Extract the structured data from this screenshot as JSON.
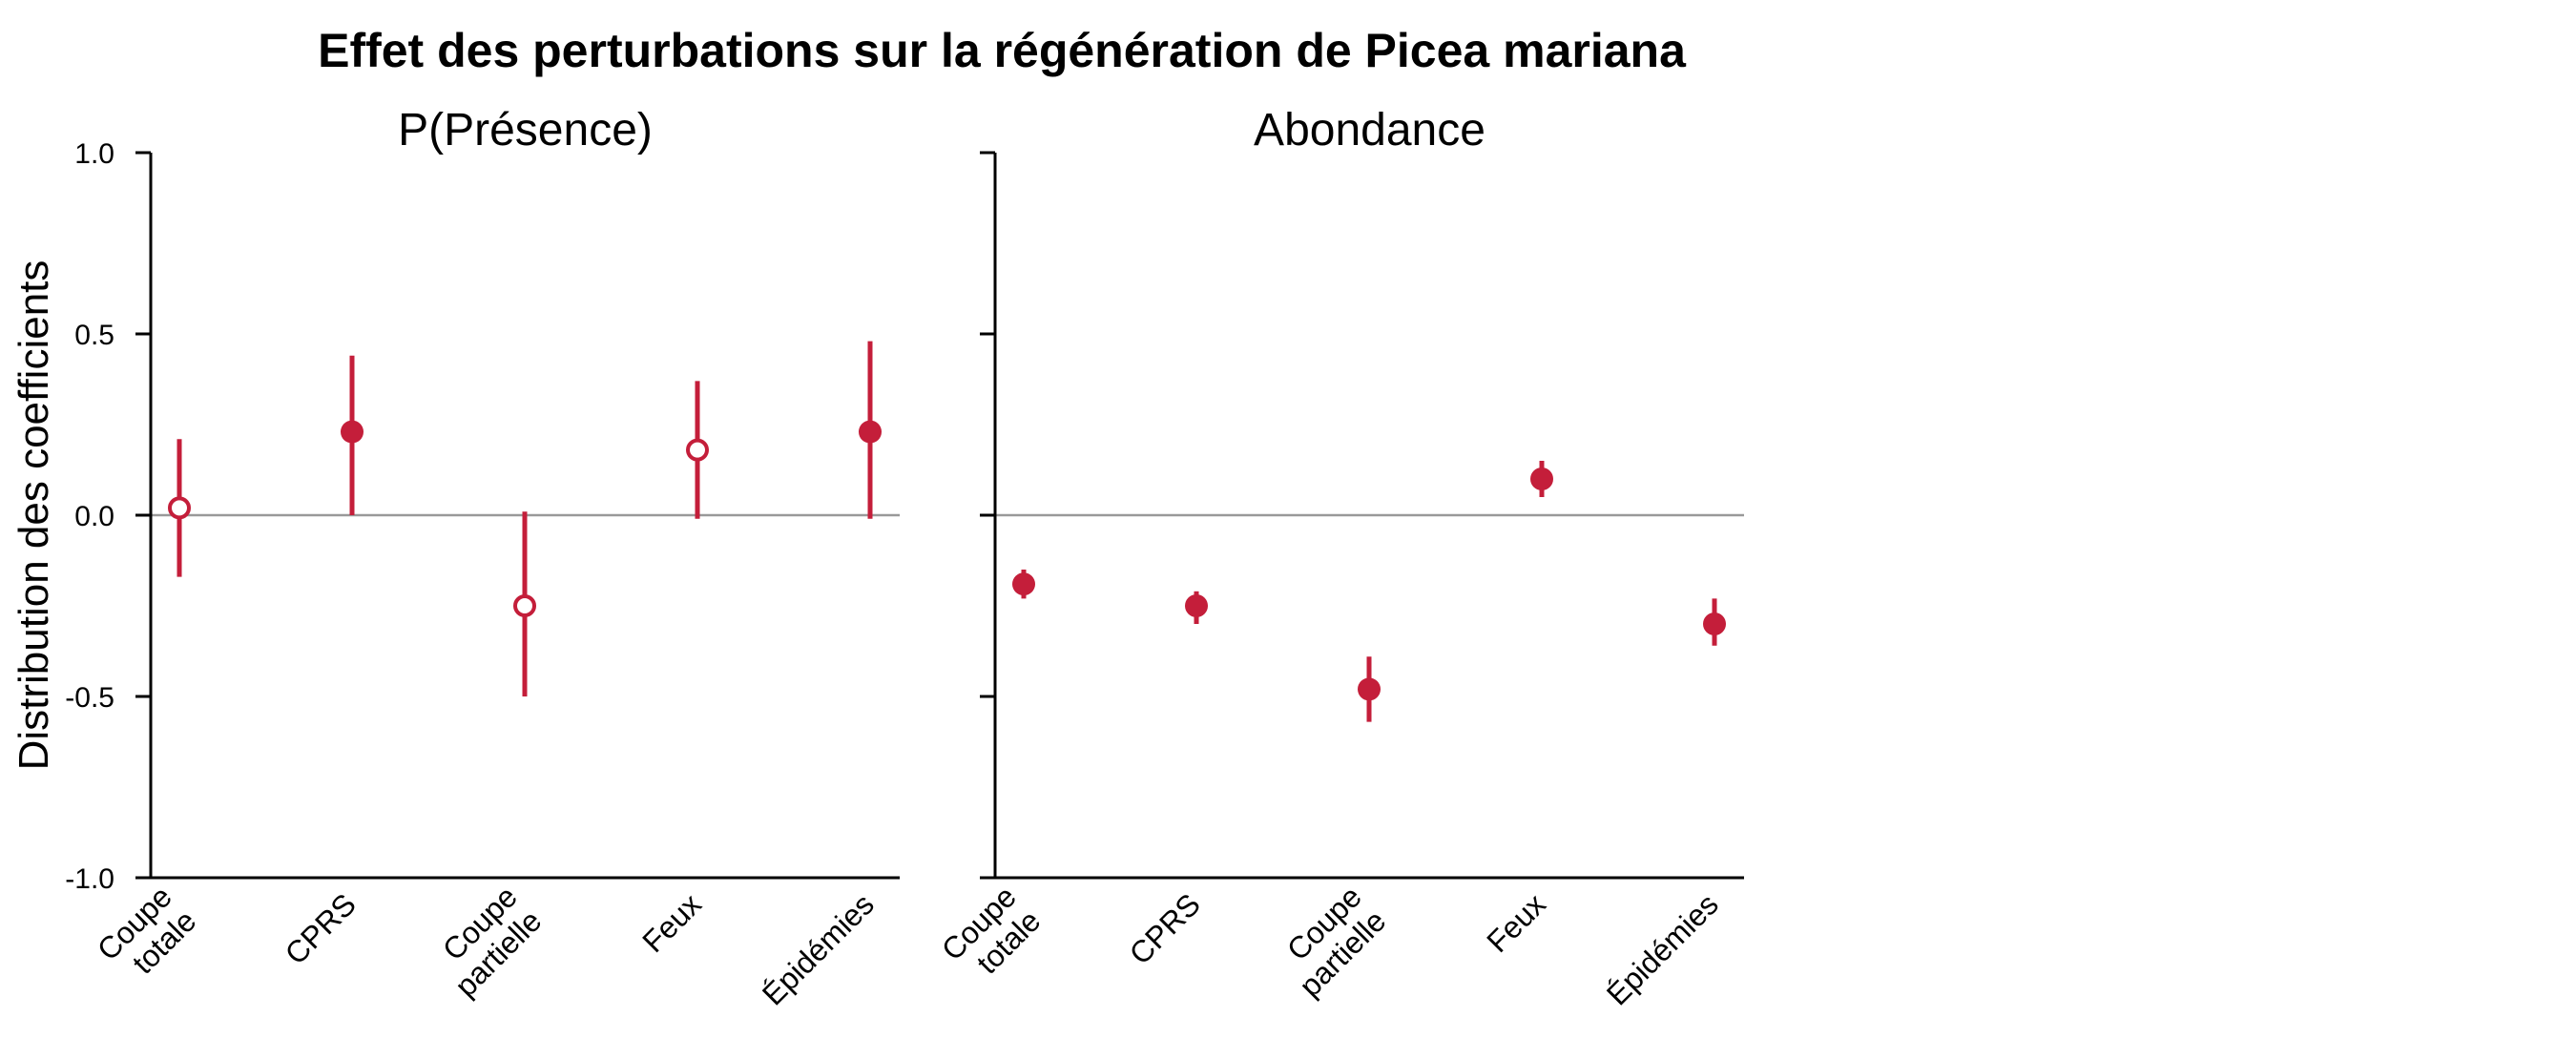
{
  "chart_data": {
    "type": "scatter",
    "title": "Effet des perturbations sur la régénération de Picea mariana",
    "ylabel": "Distribution des coefficients",
    "ylim": [
      -1.0,
      1.0
    ],
    "yticks": [
      1.0,
      0.5,
      0.0,
      -0.5,
      -1.0
    ],
    "ytick_labels": [
      "1.0",
      "0.5",
      "0.0",
      "-0.5",
      "-1.0"
    ],
    "reference_line": 0.0,
    "color": "#C41E3A",
    "categories": [
      [
        "Coupe",
        "totale"
      ],
      [
        "CPRS"
      ],
      [
        "Coupe",
        "partielle"
      ],
      [
        "Feux"
      ],
      [
        "Épidémies"
      ]
    ],
    "panels": [
      {
        "title": "P(Présence)",
        "show_y_tick_labels": true,
        "points": [
          {
            "estimate": 0.02,
            "low": -0.17,
            "high": 0.21,
            "filled": false
          },
          {
            "estimate": 0.23,
            "low": 0.0,
            "high": 0.44,
            "filled": true
          },
          {
            "estimate": -0.25,
            "low": -0.5,
            "high": 0.01,
            "filled": false
          },
          {
            "estimate": 0.18,
            "low": -0.01,
            "high": 0.37,
            "filled": false
          },
          {
            "estimate": 0.23,
            "low": -0.01,
            "high": 0.48,
            "filled": true
          }
        ]
      },
      {
        "title": "Abondance",
        "show_y_tick_labels": false,
        "points": [
          {
            "estimate": -0.19,
            "low": -0.23,
            "high": -0.15,
            "filled": true
          },
          {
            "estimate": -0.25,
            "low": -0.3,
            "high": -0.21,
            "filled": true
          },
          {
            "estimate": -0.48,
            "low": -0.57,
            "high": -0.39,
            "filled": true
          },
          {
            "estimate": 0.1,
            "low": 0.05,
            "high": 0.15,
            "filled": true
          },
          {
            "estimate": -0.3,
            "low": -0.36,
            "high": -0.23,
            "filled": true
          }
        ]
      }
    ]
  }
}
